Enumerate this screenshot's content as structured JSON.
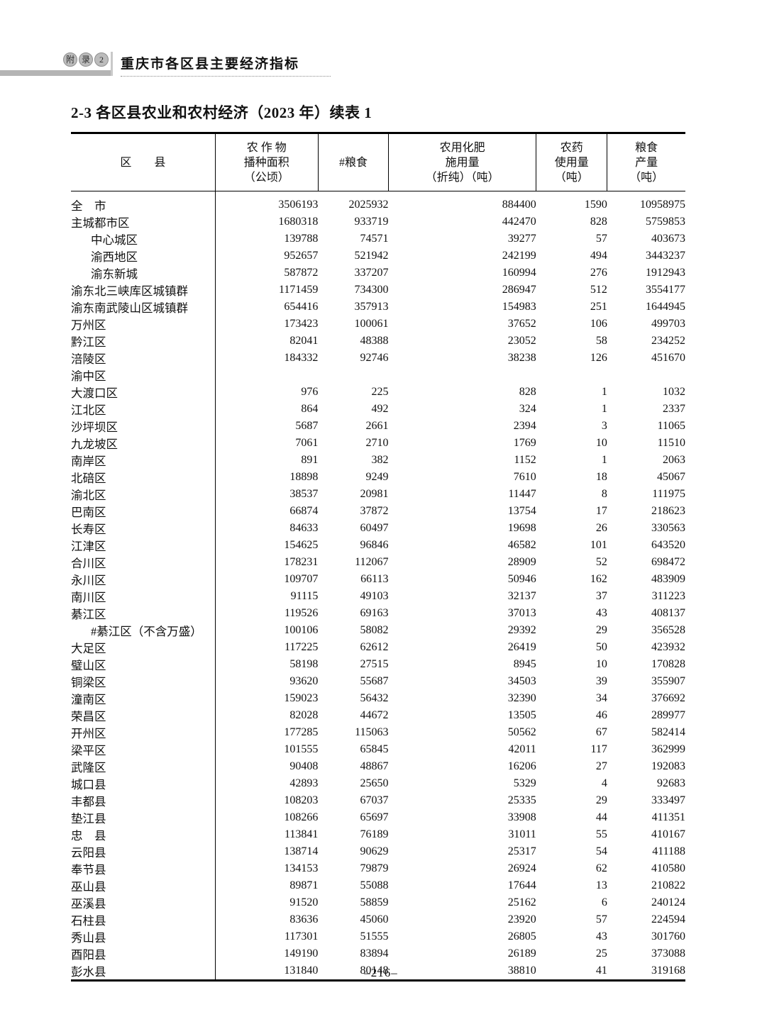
{
  "page": {
    "badge": [
      "附",
      "录",
      "2"
    ],
    "header_title": "重庆市各区县主要经济指标",
    "section_title": "2-3  各区县农业和农村经济（2023 年）续表 1",
    "page_number": "–216–"
  },
  "table": {
    "headers": {
      "region": "区　　县",
      "col2": [
        "农 作 物",
        "播种面积",
        "（公顷）"
      ],
      "col3": [
        "#粮食"
      ],
      "col4": [
        "农用化肥",
        "施用量",
        "（折纯）（吨）"
      ],
      "col5": [
        "农药",
        "使用量",
        "（吨）"
      ],
      "col6": [
        "粮食",
        "产量",
        "（吨）"
      ]
    },
    "rows": [
      {
        "name": "全　市",
        "indent": 0,
        "values": [
          "3506193",
          "2025932",
          "884400",
          "1590",
          "10958975"
        ]
      },
      {
        "name": "主城都市区",
        "indent": 0,
        "values": [
          "1680318",
          "933719",
          "442470",
          "828",
          "5759853"
        ]
      },
      {
        "name": "中心城区",
        "indent": 1,
        "values": [
          "139788",
          "74571",
          "39277",
          "57",
          "403673"
        ]
      },
      {
        "name": "渝西地区",
        "indent": 1,
        "values": [
          "952657",
          "521942",
          "242199",
          "494",
          "3443237"
        ]
      },
      {
        "name": "渝东新城",
        "indent": 1,
        "values": [
          "587872",
          "337207",
          "160994",
          "276",
          "1912943"
        ]
      },
      {
        "name": "渝东北三峡库区城镇群",
        "indent": 0,
        "values": [
          "1171459",
          "734300",
          "286947",
          "512",
          "3554177"
        ]
      },
      {
        "name": "渝东南武陵山区城镇群",
        "indent": 0,
        "values": [
          "654416",
          "357913",
          "154983",
          "251",
          "1644945"
        ]
      },
      {
        "name": "万州区",
        "indent": 0,
        "values": [
          "173423",
          "100061",
          "37652",
          "106",
          "499703"
        ]
      },
      {
        "name": "黔江区",
        "indent": 0,
        "values": [
          "82041",
          "48388",
          "23052",
          "58",
          "234252"
        ]
      },
      {
        "name": "涪陵区",
        "indent": 0,
        "values": [
          "184332",
          "92746",
          "38238",
          "126",
          "451670"
        ]
      },
      {
        "name": "渝中区",
        "indent": 0,
        "values": [
          "",
          "",
          "",
          "",
          ""
        ]
      },
      {
        "name": "大渡口区",
        "indent": 0,
        "values": [
          "976",
          "225",
          "828",
          "1",
          "1032"
        ]
      },
      {
        "name": "江北区",
        "indent": 0,
        "values": [
          "864",
          "492",
          "324",
          "1",
          "2337"
        ]
      },
      {
        "name": "沙坪坝区",
        "indent": 0,
        "values": [
          "5687",
          "2661",
          "2394",
          "3",
          "11065"
        ]
      },
      {
        "name": "九龙坡区",
        "indent": 0,
        "values": [
          "7061",
          "2710",
          "1769",
          "10",
          "11510"
        ]
      },
      {
        "name": "南岸区",
        "indent": 0,
        "values": [
          "891",
          "382",
          "1152",
          "1",
          "2063"
        ]
      },
      {
        "name": "北碚区",
        "indent": 0,
        "values": [
          "18898",
          "9249",
          "7610",
          "18",
          "45067"
        ]
      },
      {
        "name": "渝北区",
        "indent": 0,
        "values": [
          "38537",
          "20981",
          "11447",
          "8",
          "111975"
        ]
      },
      {
        "name": "巴南区",
        "indent": 0,
        "values": [
          "66874",
          "37872",
          "13754",
          "17",
          "218623"
        ]
      },
      {
        "name": "长寿区",
        "indent": 0,
        "values": [
          "84633",
          "60497",
          "19698",
          "26",
          "330563"
        ]
      },
      {
        "name": "江津区",
        "indent": 0,
        "values": [
          "154625",
          "96846",
          "46582",
          "101",
          "643520"
        ]
      },
      {
        "name": "合川区",
        "indent": 0,
        "values": [
          "178231",
          "112067",
          "28909",
          "52",
          "698472"
        ]
      },
      {
        "name": "永川区",
        "indent": 0,
        "values": [
          "109707",
          "66113",
          "50946",
          "162",
          "483909"
        ]
      },
      {
        "name": "南川区",
        "indent": 0,
        "values": [
          "91115",
          "49103",
          "32137",
          "37",
          "311223"
        ]
      },
      {
        "name": "綦江区",
        "indent": 0,
        "values": [
          "119526",
          "69163",
          "37013",
          "43",
          "408137"
        ]
      },
      {
        "name": "#綦江区（不含万盛）",
        "indent": 1,
        "values": [
          "100106",
          "58082",
          "29392",
          "29",
          "356528"
        ]
      },
      {
        "name": "大足区",
        "indent": 0,
        "values": [
          "117225",
          "62612",
          "26419",
          "50",
          "423932"
        ]
      },
      {
        "name": "璧山区",
        "indent": 0,
        "values": [
          "58198",
          "27515",
          "8945",
          "10",
          "170828"
        ]
      },
      {
        "name": "铜梁区",
        "indent": 0,
        "values": [
          "93620",
          "55687",
          "34503",
          "39",
          "355907"
        ]
      },
      {
        "name": "潼南区",
        "indent": 0,
        "values": [
          "159023",
          "56432",
          "32390",
          "34",
          "376692"
        ]
      },
      {
        "name": "荣昌区",
        "indent": 0,
        "values": [
          "82028",
          "44672",
          "13505",
          "46",
          "289977"
        ]
      },
      {
        "name": "开州区",
        "indent": 0,
        "values": [
          "177285",
          "115063",
          "50562",
          "67",
          "582414"
        ]
      },
      {
        "name": "梁平区",
        "indent": 0,
        "values": [
          "101555",
          "65845",
          "42011",
          "117",
          "362999"
        ]
      },
      {
        "name": "武隆区",
        "indent": 0,
        "values": [
          "90408",
          "48867",
          "16206",
          "27",
          "192083"
        ]
      },
      {
        "name": "城口县",
        "indent": 0,
        "values": [
          "42893",
          "25650",
          "5329",
          "4",
          "92683"
        ]
      },
      {
        "name": "丰都县",
        "indent": 0,
        "values": [
          "108203",
          "67037",
          "25335",
          "29",
          "333497"
        ]
      },
      {
        "name": "垫江县",
        "indent": 0,
        "values": [
          "108266",
          "65697",
          "33908",
          "44",
          "411351"
        ]
      },
      {
        "name": "忠　县",
        "indent": 0,
        "values": [
          "113841",
          "76189",
          "31011",
          "55",
          "410167"
        ]
      },
      {
        "name": "云阳县",
        "indent": 0,
        "values": [
          "138714",
          "90629",
          "25317",
          "54",
          "411188"
        ]
      },
      {
        "name": "奉节县",
        "indent": 0,
        "values": [
          "134153",
          "79879",
          "26924",
          "62",
          "410580"
        ]
      },
      {
        "name": "巫山县",
        "indent": 0,
        "values": [
          "89871",
          "55088",
          "17644",
          "13",
          "210822"
        ]
      },
      {
        "name": "巫溪县",
        "indent": 0,
        "values": [
          "91520",
          "58859",
          "25162",
          "6",
          "240124"
        ]
      },
      {
        "name": "石柱县",
        "indent": 0,
        "values": [
          "83636",
          "45060",
          "23920",
          "57",
          "224594"
        ]
      },
      {
        "name": "秀山县",
        "indent": 0,
        "values": [
          "117301",
          "51555",
          "26805",
          "43",
          "301760"
        ]
      },
      {
        "name": "酉阳县",
        "indent": 0,
        "values": [
          "149190",
          "83894",
          "26189",
          "25",
          "373088"
        ]
      },
      {
        "name": "彭水县",
        "indent": 0,
        "values": [
          "131840",
          "80148",
          "38810",
          "41",
          "319168"
        ]
      }
    ]
  }
}
